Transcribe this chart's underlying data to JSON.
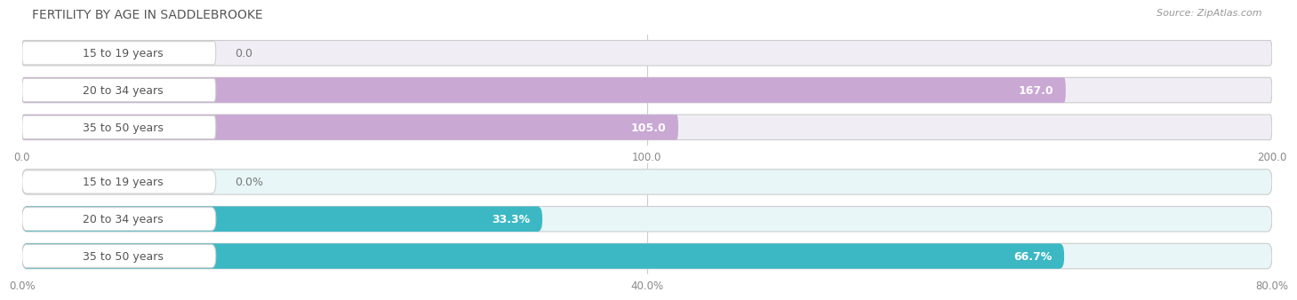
{
  "title": "FERTILITY BY AGE IN SADDLEBROOKE",
  "source": "Source: ZipAtlas.com",
  "top_chart": {
    "categories": [
      "15 to 19 years",
      "20 to 34 years",
      "35 to 50 years"
    ],
    "values": [
      0.0,
      167.0,
      105.0
    ],
    "xlim": [
      0,
      200
    ],
    "xticks": [
      0.0,
      100.0,
      200.0
    ],
    "xtick_labels": [
      "0.0",
      "100.0",
      "200.0"
    ],
    "bar_color": "#c9a8d4",
    "bar_bg_color": "#f0eef4",
    "label_color_inside": "#ffffff",
    "label_color_outside": "#777777"
  },
  "bottom_chart": {
    "categories": [
      "15 to 19 years",
      "20 to 34 years",
      "35 to 50 years"
    ],
    "values": [
      0.0,
      33.3,
      66.7
    ],
    "xlim": [
      0,
      80
    ],
    "xticks": [
      0.0,
      40.0,
      80.0
    ],
    "xtick_labels": [
      "0.0%",
      "40.0%",
      "80.0%"
    ],
    "bar_color": "#3cb8c4",
    "bar_bg_color": "#e8f6f7",
    "label_color_inside": "#ffffff",
    "label_color_outside": "#777777"
  },
  "bg_color": "#ffffff",
  "title_fontsize": 10,
  "source_fontsize": 8,
  "label_fontsize": 9,
  "tick_fontsize": 8.5,
  "category_fontsize": 9,
  "pill_bg": "#ffffff",
  "pill_border": "#dddddd",
  "cat_text_color": "#555555"
}
